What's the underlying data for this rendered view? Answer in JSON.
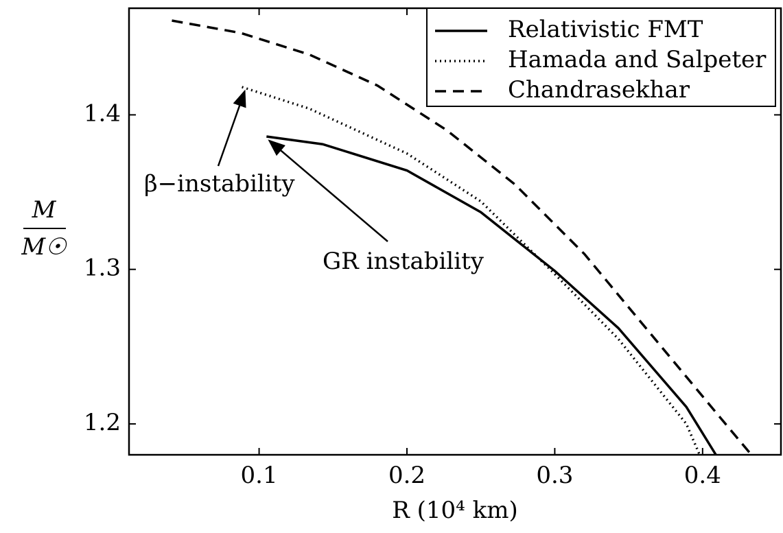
{
  "chart_data": {
    "type": "line",
    "x_label": "R (10⁴ km)",
    "y_label": {
      "numerator": "M",
      "denominator": "M☉"
    },
    "xlim": [
      0.012,
      0.453
    ],
    "ylim": [
      1.18,
      1.469
    ],
    "xticks": [
      0.1,
      0.2,
      0.3,
      0.4
    ],
    "yticks": [
      1.2,
      1.3,
      1.4
    ],
    "legend": "upper right",
    "annotations": [
      "β−instability",
      "GR instability"
    ],
    "series": [
      {
        "name": "Relativistic FMT",
        "color": "#000000",
        "dash": "solid",
        "x": [
          0.105,
          0.143,
          0.2,
          0.25,
          0.3,
          0.343,
          0.389,
          0.409
        ],
        "values": [
          1.386,
          1.381,
          1.364,
          1.337,
          1.299,
          1.262,
          1.211,
          1.18
        ]
      },
      {
        "name": "Hamada and Salpeter",
        "color": "#000000",
        "dash": "dotted",
        "x": [
          0.0884,
          0.134,
          0.2,
          0.25,
          0.3,
          0.343,
          0.389,
          0.398
        ],
        "values": [
          1.418,
          1.404,
          1.375,
          1.344,
          1.297,
          1.255,
          1.2,
          1.18
        ]
      },
      {
        "name": "Chandrasekhar",
        "color": "#000000",
        "dash": "dashed",
        "x": [
          0.041,
          0.0875,
          0.134,
          0.18,
          0.227,
          0.273,
          0.32,
          0.366,
          0.412,
          0.433
        ],
        "values": [
          1.461,
          1.453,
          1.439,
          1.419,
          1.39,
          1.355,
          1.31,
          1.257,
          1.204,
          1.18
        ]
      }
    ]
  }
}
